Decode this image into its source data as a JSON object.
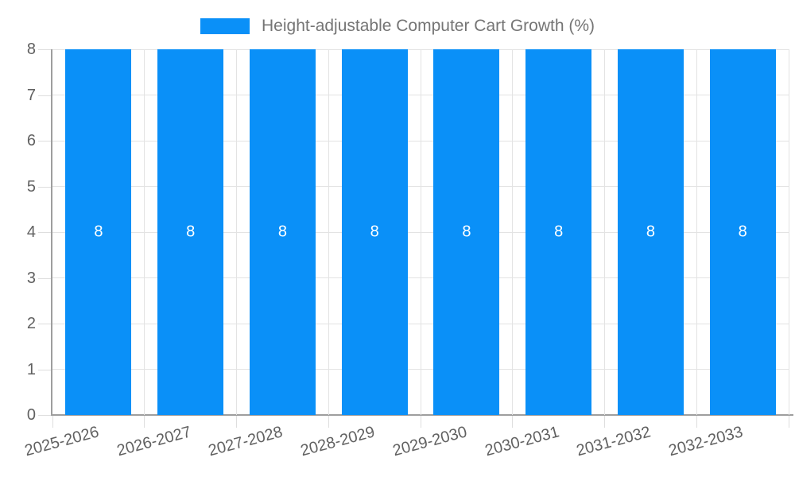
{
  "chart_data": {
    "type": "bar",
    "title": "Height-adjustable Computer Cart Growth (%)",
    "categories": [
      "2025-2026",
      "2026-2027",
      "2027-2028",
      "2028-2029",
      "2029-2030",
      "2030-2031",
      "2031-2032",
      "2032-2033"
    ],
    "series": [
      {
        "name": "Height-adjustable Computer Cart Growth (%)",
        "values": [
          8,
          8,
          8,
          8,
          8,
          8,
          8,
          8
        ]
      }
    ],
    "bar_value_labels": [
      "8",
      "8",
      "8",
      "8",
      "8",
      "8",
      "8",
      "8"
    ],
    "xlabel": "",
    "ylabel": "",
    "ylim": [
      0,
      8
    ],
    "yticks": [
      0,
      1,
      2,
      3,
      4,
      5,
      6,
      7,
      8
    ],
    "grid": true,
    "legend_position": "top-center",
    "x_label_rotation_deg": -15,
    "colors": {
      "bar": "#0a90f8",
      "grid": "#e3e3e3",
      "tick": "#dedede",
      "axis": "#9e9e9e",
      "axis_text": "#616161",
      "title_text": "#757575",
      "value_text": "#ffffff"
    }
  }
}
